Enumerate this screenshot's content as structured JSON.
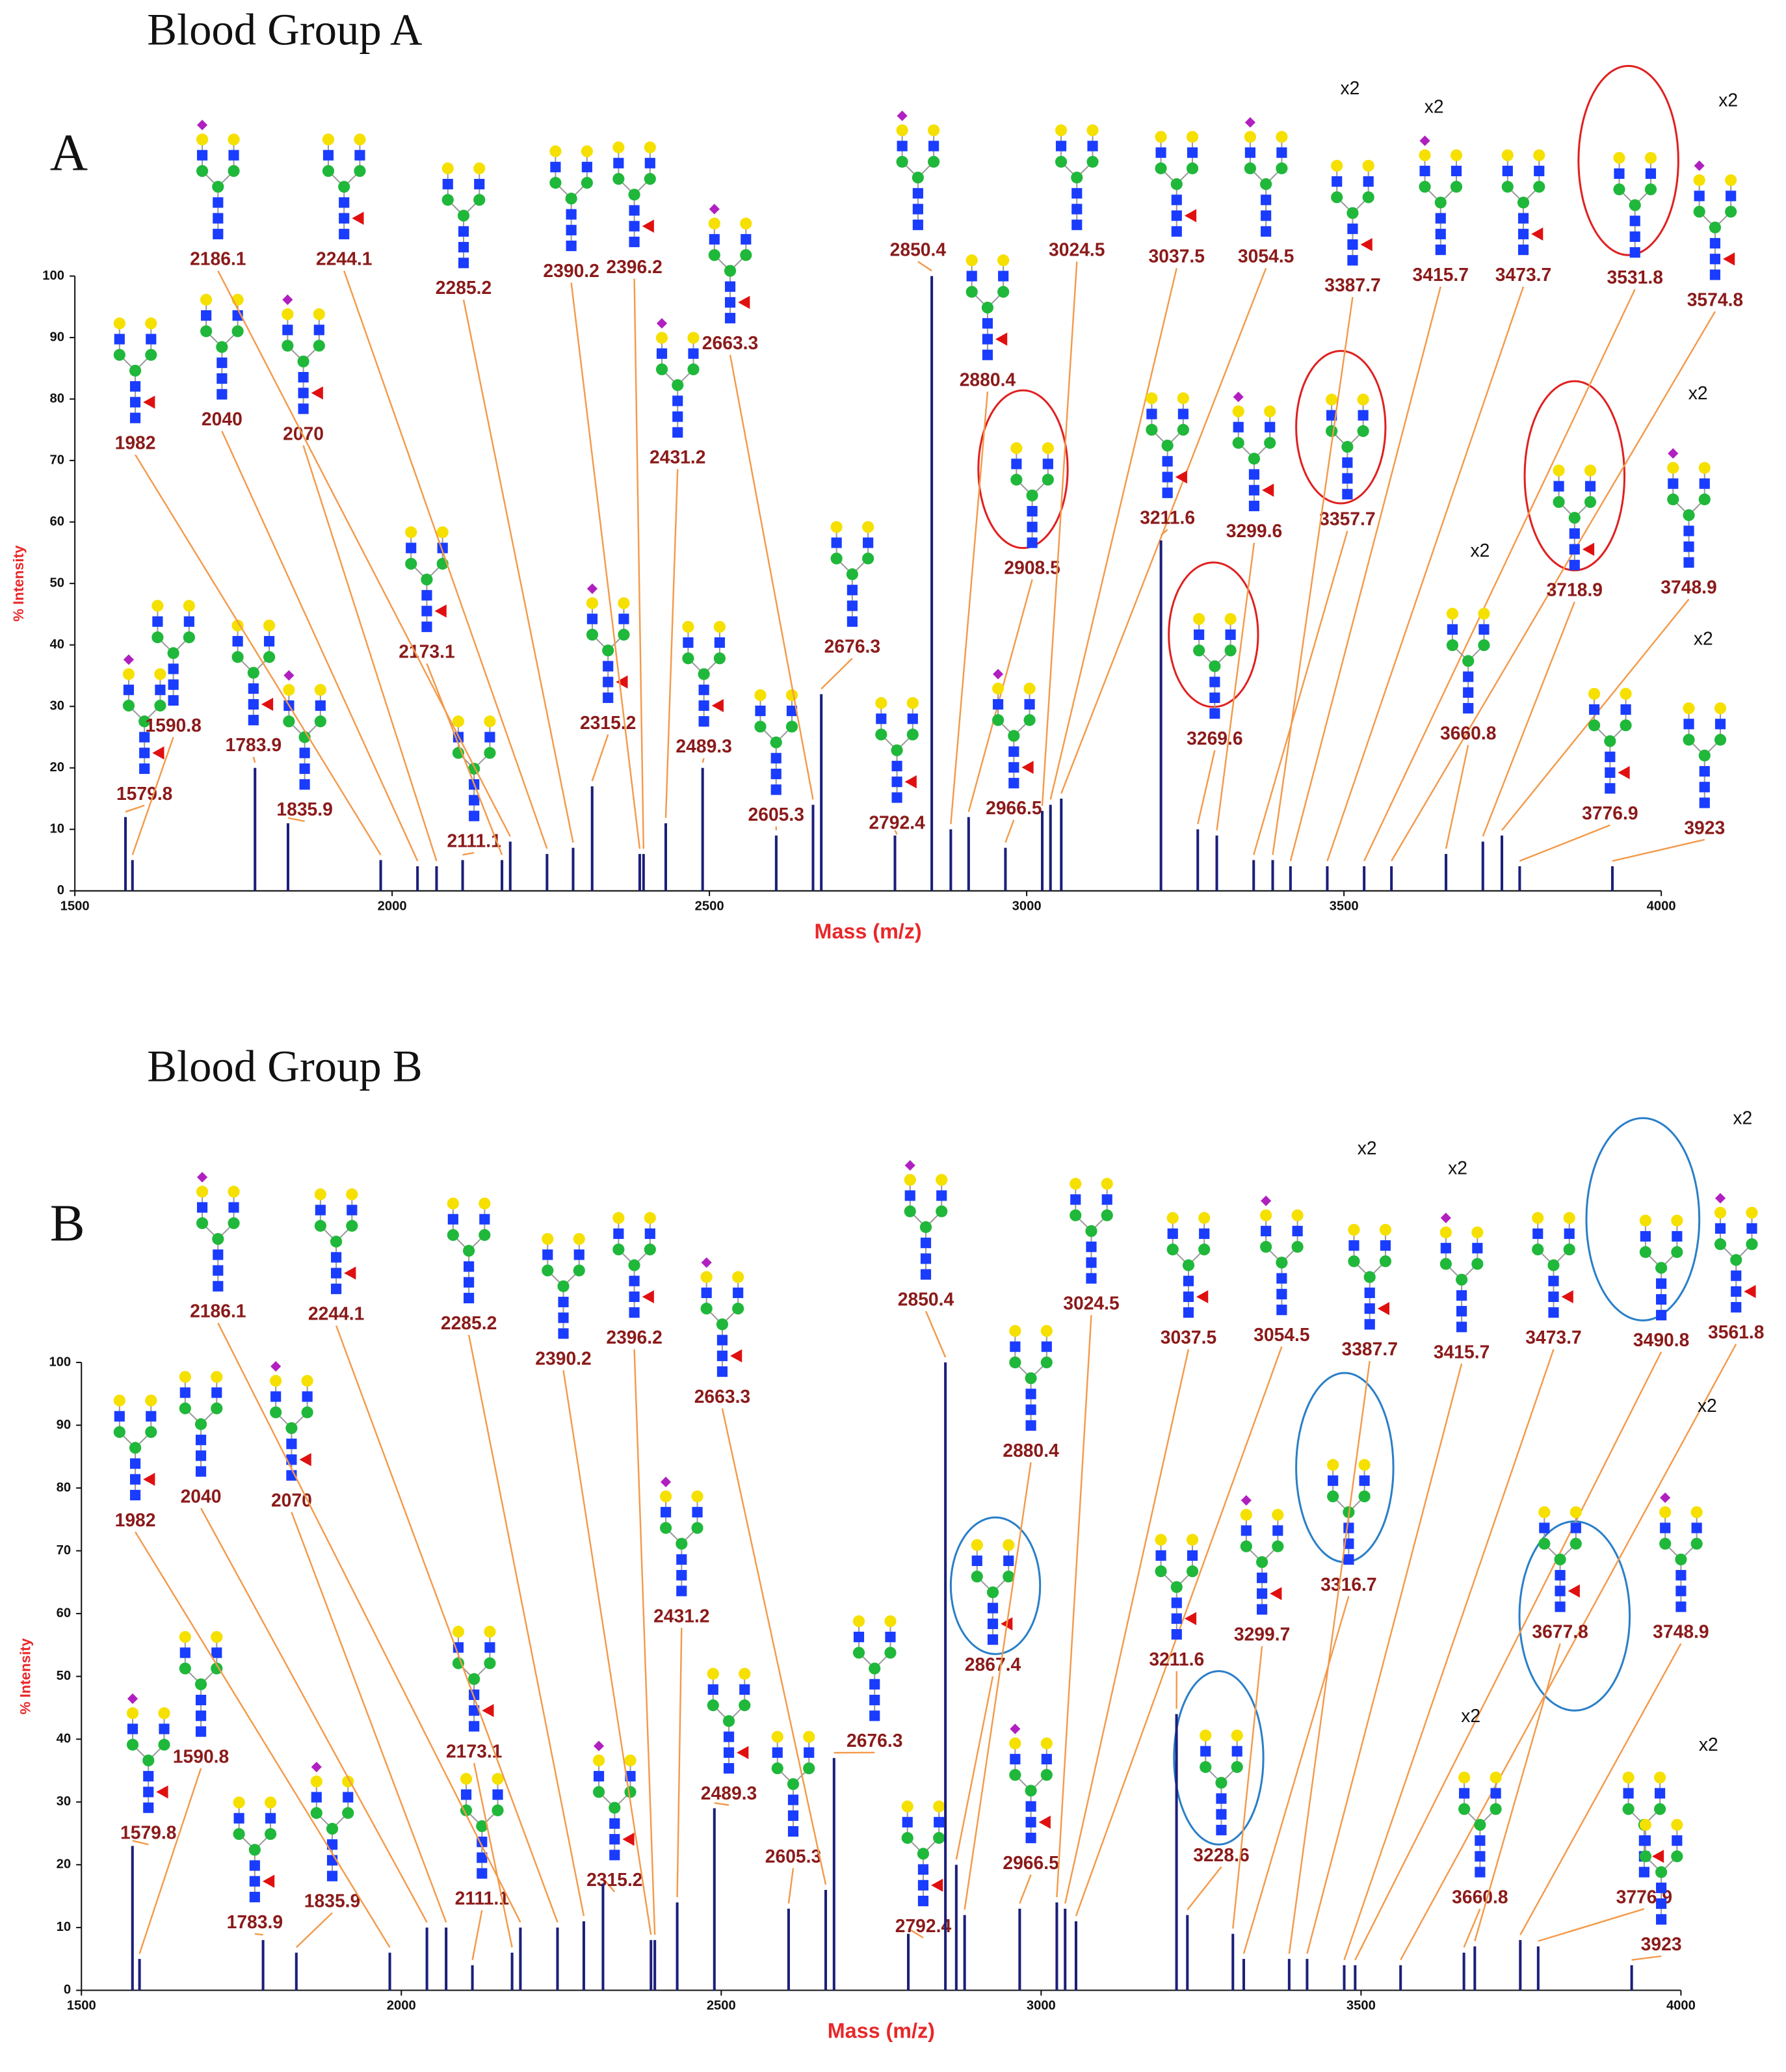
{
  "chart_data": [
    {
      "type": "spectrum",
      "title": "Blood Group A",
      "panel_label": "A",
      "xlabel": "Mass (m/z)",
      "ylabel": "% Intensity",
      "color": "#1b1f7a",
      "xlim": [
        1500,
        4000
      ],
      "xticks": [
        1500,
        2000,
        2500,
        3000,
        3500,
        4000
      ],
      "ylim": [
        0,
        100
      ],
      "yticks": [
        0,
        10,
        20,
        30,
        40,
        50,
        60,
        70,
        80,
        90,
        100
      ],
      "x": [
        1579.8,
        1590.8,
        1783.9,
        1835.9,
        1982.0,
        2040.0,
        2070.0,
        2111.1,
        2173.1,
        2186.1,
        2244.1,
        2285.2,
        2315.2,
        2390.2,
        2396.2,
        2431.2,
        2489.3,
        2605.3,
        2663.3,
        2676.3,
        2792.4,
        2850.4,
        2880.4,
        2908.5,
        2966.5,
        3024.5,
        3037.5,
        3054.5,
        3211.6,
        3269.6,
        3299.6,
        3357.7,
        3387.7,
        3415.7,
        3473.7,
        3531.8,
        3574.8,
        3660.8,
        3718.9,
        3748.9,
        3776.9,
        3923.0
      ],
      "values": [
        12,
        5,
        20,
        11,
        5,
        4,
        4,
        5,
        5,
        8,
        6,
        7,
        17,
        6,
        6,
        11,
        20,
        9,
        14,
        32,
        9,
        100,
        10,
        12,
        7,
        13,
        14,
        15,
        57,
        10,
        9,
        5,
        5,
        4,
        4,
        4,
        4,
        6,
        8,
        9,
        4,
        4
      ],
      "annotations": [
        "x2",
        "x2",
        "x2",
        "x2",
        "x2",
        "x2"
      ]
    },
    {
      "type": "spectrum",
      "title": "Blood Group B",
      "panel_label": "B",
      "xlabel": "Mass (m/z)",
      "ylabel": "% Intensity",
      "color": "#1b1f7a",
      "xlim": [
        1500,
        4000
      ],
      "xticks": [
        1500,
        2000,
        2500,
        3000,
        3500,
        4000
      ],
      "ylim": [
        0,
        100
      ],
      "yticks": [
        0,
        10,
        20,
        30,
        40,
        50,
        60,
        70,
        80,
        90,
        100
      ],
      "x": [
        1579.8,
        1590.8,
        1783.9,
        1835.9,
        1982.0,
        2040.0,
        2070.0,
        2111.1,
        2173.1,
        2186.1,
        2244.1,
        2285.2,
        2315.2,
        2390.2,
        2396.2,
        2431.2,
        2489.3,
        2605.3,
        2663.3,
        2676.3,
        2792.4,
        2850.4,
        2867.4,
        2880.4,
        2966.5,
        3024.5,
        3037.5,
        3054.5,
        3211.6,
        3228.6,
        3299.7,
        3316.7,
        3387.7,
        3415.7,
        3473.7,
        3490.8,
        3561.8,
        3660.8,
        3677.8,
        3748.9,
        3776.9,
        3923.0
      ],
      "values": [
        23,
        5,
        8,
        6,
        6,
        10,
        10,
        4,
        6,
        10,
        10,
        11,
        17,
        8,
        8,
        14,
        29,
        13,
        16,
        37,
        9,
        100,
        20,
        12,
        13,
        14,
        13,
        11,
        44,
        12,
        9,
        5,
        5,
        5,
        4,
        4,
        4,
        6,
        7,
        8,
        7,
        4
      ],
      "annotations": [
        "x2",
        "x2",
        "x2",
        "x2",
        "x2",
        "x2"
      ]
    }
  ]
}
